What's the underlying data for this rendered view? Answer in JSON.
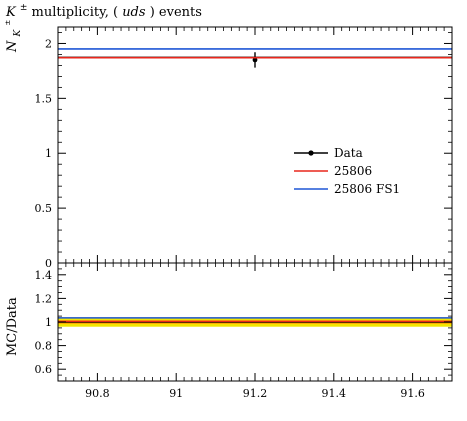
{
  "chart_data": [
    {
      "type": "line",
      "title": "K± multiplicity, (uds) events",
      "title_parts": {
        "symbol": "K",
        "superscript": "±",
        "middle": " multiplicity, (",
        "italic": "uds",
        "end": ") events"
      },
      "ylabel": "N",
      "ylabel_sub": "K",
      "ylabel_sup": "±",
      "xlabel": "",
      "xlim": [
        90.7,
        91.7
      ],
      "ylim": [
        0,
        2.15
      ],
      "y_ticks": [
        {
          "value": 0,
          "label": "0"
        },
        {
          "value": 0.5,
          "label": "0.5"
        },
        {
          "value": 1,
          "label": "1"
        },
        {
          "value": 1.5,
          "label": "1.5"
        },
        {
          "value": 2,
          "label": "2"
        }
      ],
      "legend_position": "right",
      "legend": [
        "Data",
        "25806",
        "25806 FS1"
      ],
      "series": [
        {
          "name": "Data",
          "kind": "points",
          "color": "#000000",
          "points": [
            {
              "x": 91.2,
              "y": 1.85,
              "yerr": 0.07,
              "xerr": 0.0
            }
          ]
        },
        {
          "name": "25806",
          "kind": "hline",
          "color": "#e8261b",
          "y": 1.87
        },
        {
          "name": "25806 FS1",
          "kind": "hline",
          "color": "#1f57d6",
          "y": 1.95
        }
      ],
      "extra_lines": [
        {
          "color": "#000000",
          "y": 1.875
        }
      ]
    },
    {
      "type": "line",
      "title": "",
      "ylabel": "MC/Data",
      "xlabel": "",
      "xlim": [
        90.7,
        91.7
      ],
      "ylim": [
        0.5,
        1.5
      ],
      "y_ticks": [
        {
          "value": 0.6,
          "label": "0.6"
        },
        {
          "value": 0.8,
          "label": "0.8"
        },
        {
          "value": 1,
          "label": "1"
        },
        {
          "value": 1.2,
          "label": "1.2"
        },
        {
          "value": 1.4,
          "label": "1.4"
        }
      ],
      "x_ticks": [
        {
          "value": 90.8,
          "label": "90.8"
        },
        {
          "value": 91,
          "label": "91"
        },
        {
          "value": 91.2,
          "label": "91.2"
        },
        {
          "value": 91.4,
          "label": "91.4"
        },
        {
          "value": 91.6,
          "label": "91.6"
        }
      ],
      "bands": [
        {
          "color": "#f2e600",
          "low": 0.96,
          "high": 1.04
        },
        {
          "color": "#ffa500",
          "low": 0.984,
          "high": 1.016
        }
      ],
      "series": [
        {
          "name": "Data",
          "kind": "hline",
          "color": "#000000",
          "y": 1.0
        },
        {
          "name": "25806",
          "kind": "hline",
          "color": "#e8261b",
          "y": 1.005
        },
        {
          "name": "25806 FS1",
          "kind": "hline",
          "color": "#1f57d6",
          "y": 1.035
        }
      ]
    }
  ]
}
